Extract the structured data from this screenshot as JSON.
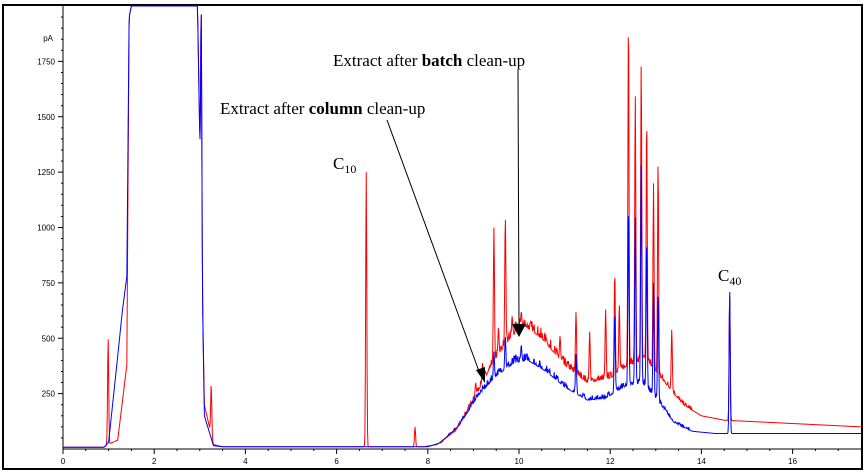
{
  "chart_data": {
    "type": "line",
    "title": "",
    "xlabel": "",
    "ylabel": "pA",
    "xlim": [
      0,
      17.5
    ],
    "ylim": [
      0,
      2000
    ],
    "x_ticks": [
      "0",
      "2",
      "4",
      "6",
      "8",
      "10",
      "12",
      "14",
      "16"
    ],
    "y_ticks": [
      "250",
      "500",
      "750",
      "1000",
      "1250",
      "1500",
      "1750"
    ],
    "series": [
      {
        "key": "batch",
        "color": "#ff0000",
        "baseline": [
          [
            0,
            8
          ],
          [
            0.9,
            8
          ],
          [
            0.98,
            20
          ],
          [
            1.2,
            40
          ],
          [
            1.4,
            380
          ],
          [
            1.45,
            1950
          ],
          [
            1.5,
            2000
          ],
          [
            2.95,
            2000
          ],
          [
            3.1,
            200
          ],
          [
            3.3,
            20
          ],
          [
            3.5,
            10
          ],
          [
            7.9,
            10
          ],
          [
            8.2,
            20
          ],
          [
            8.6,
            80
          ],
          [
            9.0,
            220
          ],
          [
            9.4,
            380
          ],
          [
            9.8,
            500
          ],
          [
            10.1,
            560
          ],
          [
            10.5,
            500
          ],
          [
            11.0,
            380
          ],
          [
            11.5,
            300
          ],
          [
            12.0,
            320
          ],
          [
            12.4,
            380
          ],
          [
            12.8,
            400
          ],
          [
            13.2,
            300
          ],
          [
            13.6,
            200
          ],
          [
            14.0,
            150
          ],
          [
            14.5,
            130
          ],
          [
            15.0,
            125
          ],
          [
            16.0,
            115
          ],
          [
            17.0,
            105
          ],
          [
            17.5,
            100
          ]
        ],
        "peaks": [
          [
            0.99,
            500
          ],
          [
            3.03,
            2000
          ],
          [
            3.25,
            290
          ],
          [
            6.65,
            1250
          ],
          [
            7.72,
            100
          ],
          [
            8.9,
            200
          ],
          [
            9.05,
            300
          ],
          [
            9.2,
            390
          ],
          [
            9.35,
            360
          ],
          [
            9.45,
            1000
          ],
          [
            9.55,
            550
          ],
          [
            9.7,
            1050
          ],
          [
            9.85,
            600
          ],
          [
            10.05,
            620
          ],
          [
            10.3,
            500
          ],
          [
            10.6,
            500
          ],
          [
            10.9,
            510
          ],
          [
            11.25,
            620
          ],
          [
            11.55,
            530
          ],
          [
            11.9,
            630
          ],
          [
            12.1,
            800
          ],
          [
            12.2,
            650
          ],
          [
            12.4,
            1950
          ],
          [
            12.55,
            1600
          ],
          [
            12.68,
            1750
          ],
          [
            12.8,
            1500
          ],
          [
            12.95,
            1200
          ],
          [
            13.05,
            1300
          ],
          [
            13.35,
            540
          ],
          [
            14.62,
            700
          ]
        ]
      },
      {
        "key": "column",
        "color": "#0000ff",
        "baseline": [
          [
            0,
            8
          ],
          [
            0.9,
            8
          ],
          [
            1.0,
            30
          ],
          [
            1.2,
            420
          ],
          [
            1.3,
            620
          ],
          [
            1.4,
            780
          ],
          [
            1.45,
            1950
          ],
          [
            1.5,
            2000
          ],
          [
            2.95,
            2000
          ],
          [
            3.1,
            150
          ],
          [
            3.3,
            15
          ],
          [
            3.5,
            10
          ],
          [
            8.0,
            10
          ],
          [
            8.3,
            30
          ],
          [
            8.7,
            110
          ],
          [
            9.1,
            240
          ],
          [
            9.5,
            330
          ],
          [
            9.9,
            390
          ],
          [
            10.2,
            400
          ],
          [
            10.6,
            350
          ],
          [
            11.0,
            280
          ],
          [
            11.5,
            220
          ],
          [
            11.9,
            230
          ],
          [
            12.3,
            280
          ],
          [
            12.7,
            300
          ],
          [
            13.0,
            230
          ],
          [
            13.4,
            120
          ],
          [
            13.8,
            80
          ],
          [
            14.3,
            70
          ],
          [
            15.0,
            70
          ],
          [
            16.0,
            70
          ],
          [
            17.0,
            70
          ],
          [
            17.5,
            70
          ]
        ],
        "peaks": [
          [
            0.98,
            20
          ],
          [
            3.03,
            2000
          ],
          [
            9.45,
            440
          ],
          [
            9.7,
            510
          ],
          [
            10.05,
            470
          ],
          [
            11.25,
            430
          ],
          [
            12.1,
            620
          ],
          [
            12.4,
            1100
          ],
          [
            12.55,
            1050
          ],
          [
            12.68,
            1300
          ],
          [
            12.8,
            950
          ],
          [
            12.95,
            750
          ],
          [
            13.05,
            700
          ],
          [
            14.62,
            720
          ]
        ]
      }
    ],
    "annotations": {
      "c10": {
        "base": "C",
        "sub": "10"
      },
      "c40": {
        "base": "C",
        "sub": "40"
      },
      "batch_label": {
        "pre": "Extract after ",
        "bold": "batch",
        "post": " clean-up"
      },
      "column_label": {
        "pre": "Extract after ",
        "bold": "column",
        "post": " clean-up"
      }
    }
  }
}
